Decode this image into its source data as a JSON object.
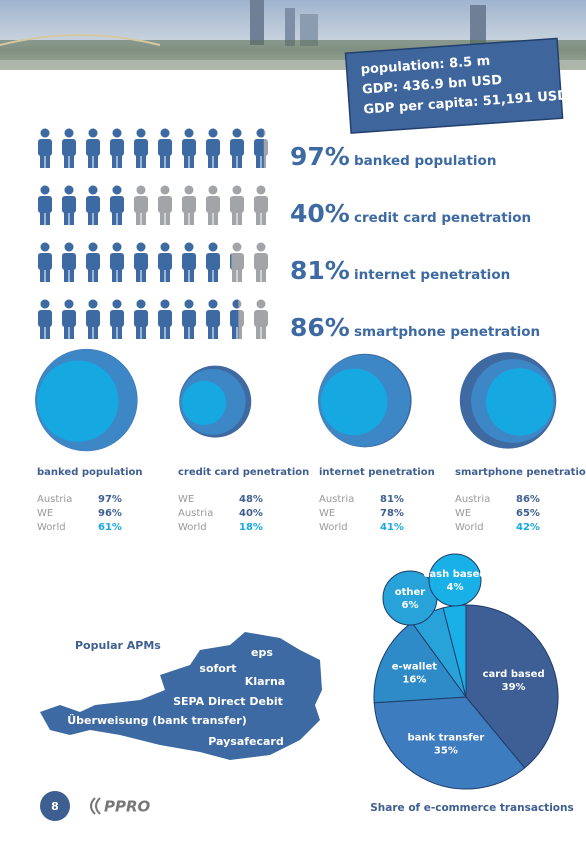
{
  "header": {
    "stats": [
      "population: 8.5 m",
      "GDP: 436.9 bn USD",
      "GDP per capita: 51,191 USD"
    ]
  },
  "indicators": [
    {
      "value": 97,
      "value_label": "97%",
      "label": "banked population"
    },
    {
      "value": 40,
      "value_label": "40%",
      "label": "credit card penetration"
    },
    {
      "value": 81,
      "value_label": "81%",
      "label": "internet penetration"
    },
    {
      "value": 86,
      "value_label": "86%",
      "label": "smartphone penetration"
    }
  ],
  "comparisons": {
    "colors": [
      "#3f6aa1",
      "#3d87c7",
      "#16a8e0"
    ],
    "panels": [
      {
        "title": "banked population",
        "rows": [
          {
            "name": "Austria",
            "value": 97,
            "value_label": "97%"
          },
          {
            "name": "WE",
            "value": 96,
            "value_label": "96%"
          },
          {
            "name": "World",
            "value": 61,
            "value_label": "61%"
          }
        ]
      },
      {
        "title": "credit card penetration",
        "rows": [
          {
            "name": "WE",
            "value": 48,
            "value_label": "48%"
          },
          {
            "name": "Austria",
            "value": 40,
            "value_label": "40%"
          },
          {
            "name": "World",
            "value": 18,
            "value_label": "18%"
          }
        ]
      },
      {
        "title": "internet penetration",
        "rows": [
          {
            "name": "Austria",
            "value": 81,
            "value_label": "81%"
          },
          {
            "name": "WE",
            "value": 78,
            "value_label": "78%"
          },
          {
            "name": "World",
            "value": 41,
            "value_label": "41%"
          }
        ]
      },
      {
        "title": "smartphone penetration",
        "rows": [
          {
            "name": "Austria",
            "value": 86,
            "value_label": "86%"
          },
          {
            "name": "WE",
            "value": 65,
            "value_label": "65%"
          },
          {
            "name": "World",
            "value": 42,
            "value_label": "42%"
          }
        ]
      }
    ]
  },
  "apms": {
    "title": "Popular APMs",
    "items": [
      "eps",
      "sofort",
      "Klarna",
      "SEPA Direct Debit",
      "Überweisung (bank transfer)",
      "Paysafecard"
    ]
  },
  "chart_data": {
    "type": "pie",
    "title": "Share of e-commerce transactions",
    "categories": [
      "card based",
      "bank transfer",
      "e-wallet",
      "other",
      "cash based"
    ],
    "values": [
      39,
      35,
      16,
      6,
      4
    ],
    "value_labels": [
      "39%",
      "35%",
      "16%",
      "6%",
      "4%"
    ],
    "colors": [
      "#3d5f95",
      "#3d7cbf",
      "#2f8bc8",
      "#27a3da",
      "#18b0e6"
    ]
  },
  "footer": {
    "page": "8",
    "brand": "PPRO"
  }
}
